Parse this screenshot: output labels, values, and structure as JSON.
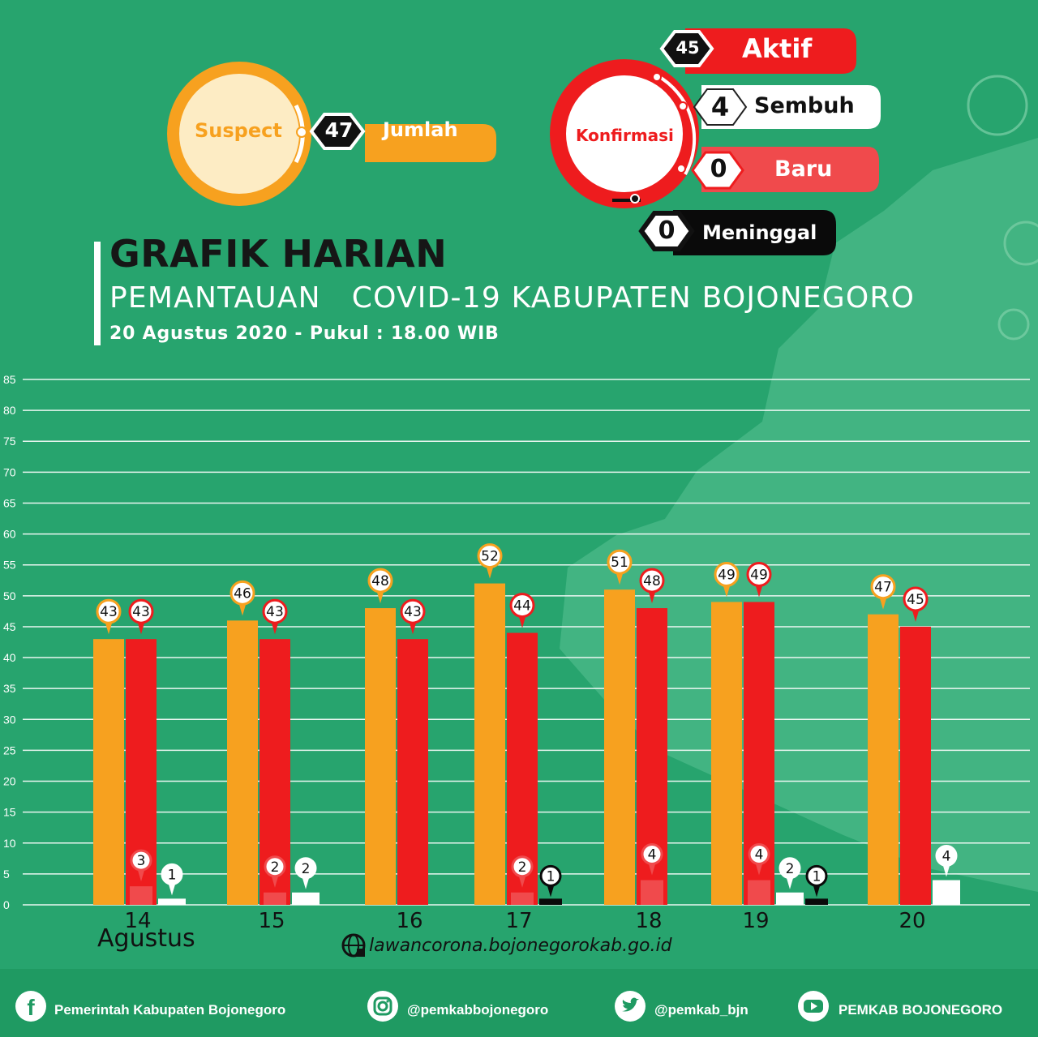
{
  "header": {
    "title": "GRAFIK HARIAN",
    "subtitle": "PEMANTAUAN   COVID-19 KABUPATEN BOJONEGORO",
    "date": "20 Agustus 2020 - Pukul : 18.00 WIB"
  },
  "suspect": {
    "label": "Suspect",
    "value": "47",
    "value_label": "Jumlah"
  },
  "konfirmasi": {
    "label": "Konfirmasi",
    "aktif": {
      "value": "45",
      "label": "Aktif"
    },
    "sembuh": {
      "value": "4",
      "label": "Sembuh"
    },
    "baru": {
      "value": "0",
      "label": "Baru"
    },
    "meninggal": {
      "value": "0",
      "label": "Meninggal"
    }
  },
  "month_label": "Agustus",
  "website": "lawancorona.bojonegorokab.go.id",
  "footer": {
    "facebook": "Pemerintah Kabupaten Bojonegoro",
    "instagram": "@pemkabbojonegoro",
    "twitter": "@pemkab_bjn",
    "youtube": "PEMKAB BOJONEGORO"
  },
  "colors": {
    "background": "#27a46e",
    "suspect": "#f7a11f",
    "konfirmasi": "#ee1c1e",
    "baru": "#f04a4c",
    "sembuh": "#ffffff",
    "meninggal": "#0a0a0a"
  },
  "chart_data": {
    "type": "bar",
    "categories": [
      "14",
      "15",
      "16",
      "17",
      "18",
      "19",
      "20"
    ],
    "ylim": [
      0,
      85
    ],
    "yticks": [
      0,
      5,
      10,
      15,
      20,
      25,
      30,
      35,
      40,
      45,
      50,
      55,
      60,
      65,
      70,
      75,
      80,
      85
    ],
    "grid": true,
    "series": [
      {
        "key": "suspect",
        "values": [
          43,
          46,
          48,
          52,
          51,
          49,
          47
        ]
      },
      {
        "key": "konfirmasi",
        "values": [
          43,
          43,
          43,
          44,
          48,
          49,
          45
        ]
      },
      {
        "key": "baru",
        "values": [
          3,
          2,
          null,
          2,
          4,
          4,
          null
        ]
      },
      {
        "key": "sembuh",
        "values": [
          1,
          2,
          null,
          null,
          null,
          2,
          4
        ]
      },
      {
        "key": "meninggal",
        "values": [
          null,
          null,
          null,
          1,
          null,
          1,
          null
        ]
      }
    ]
  }
}
